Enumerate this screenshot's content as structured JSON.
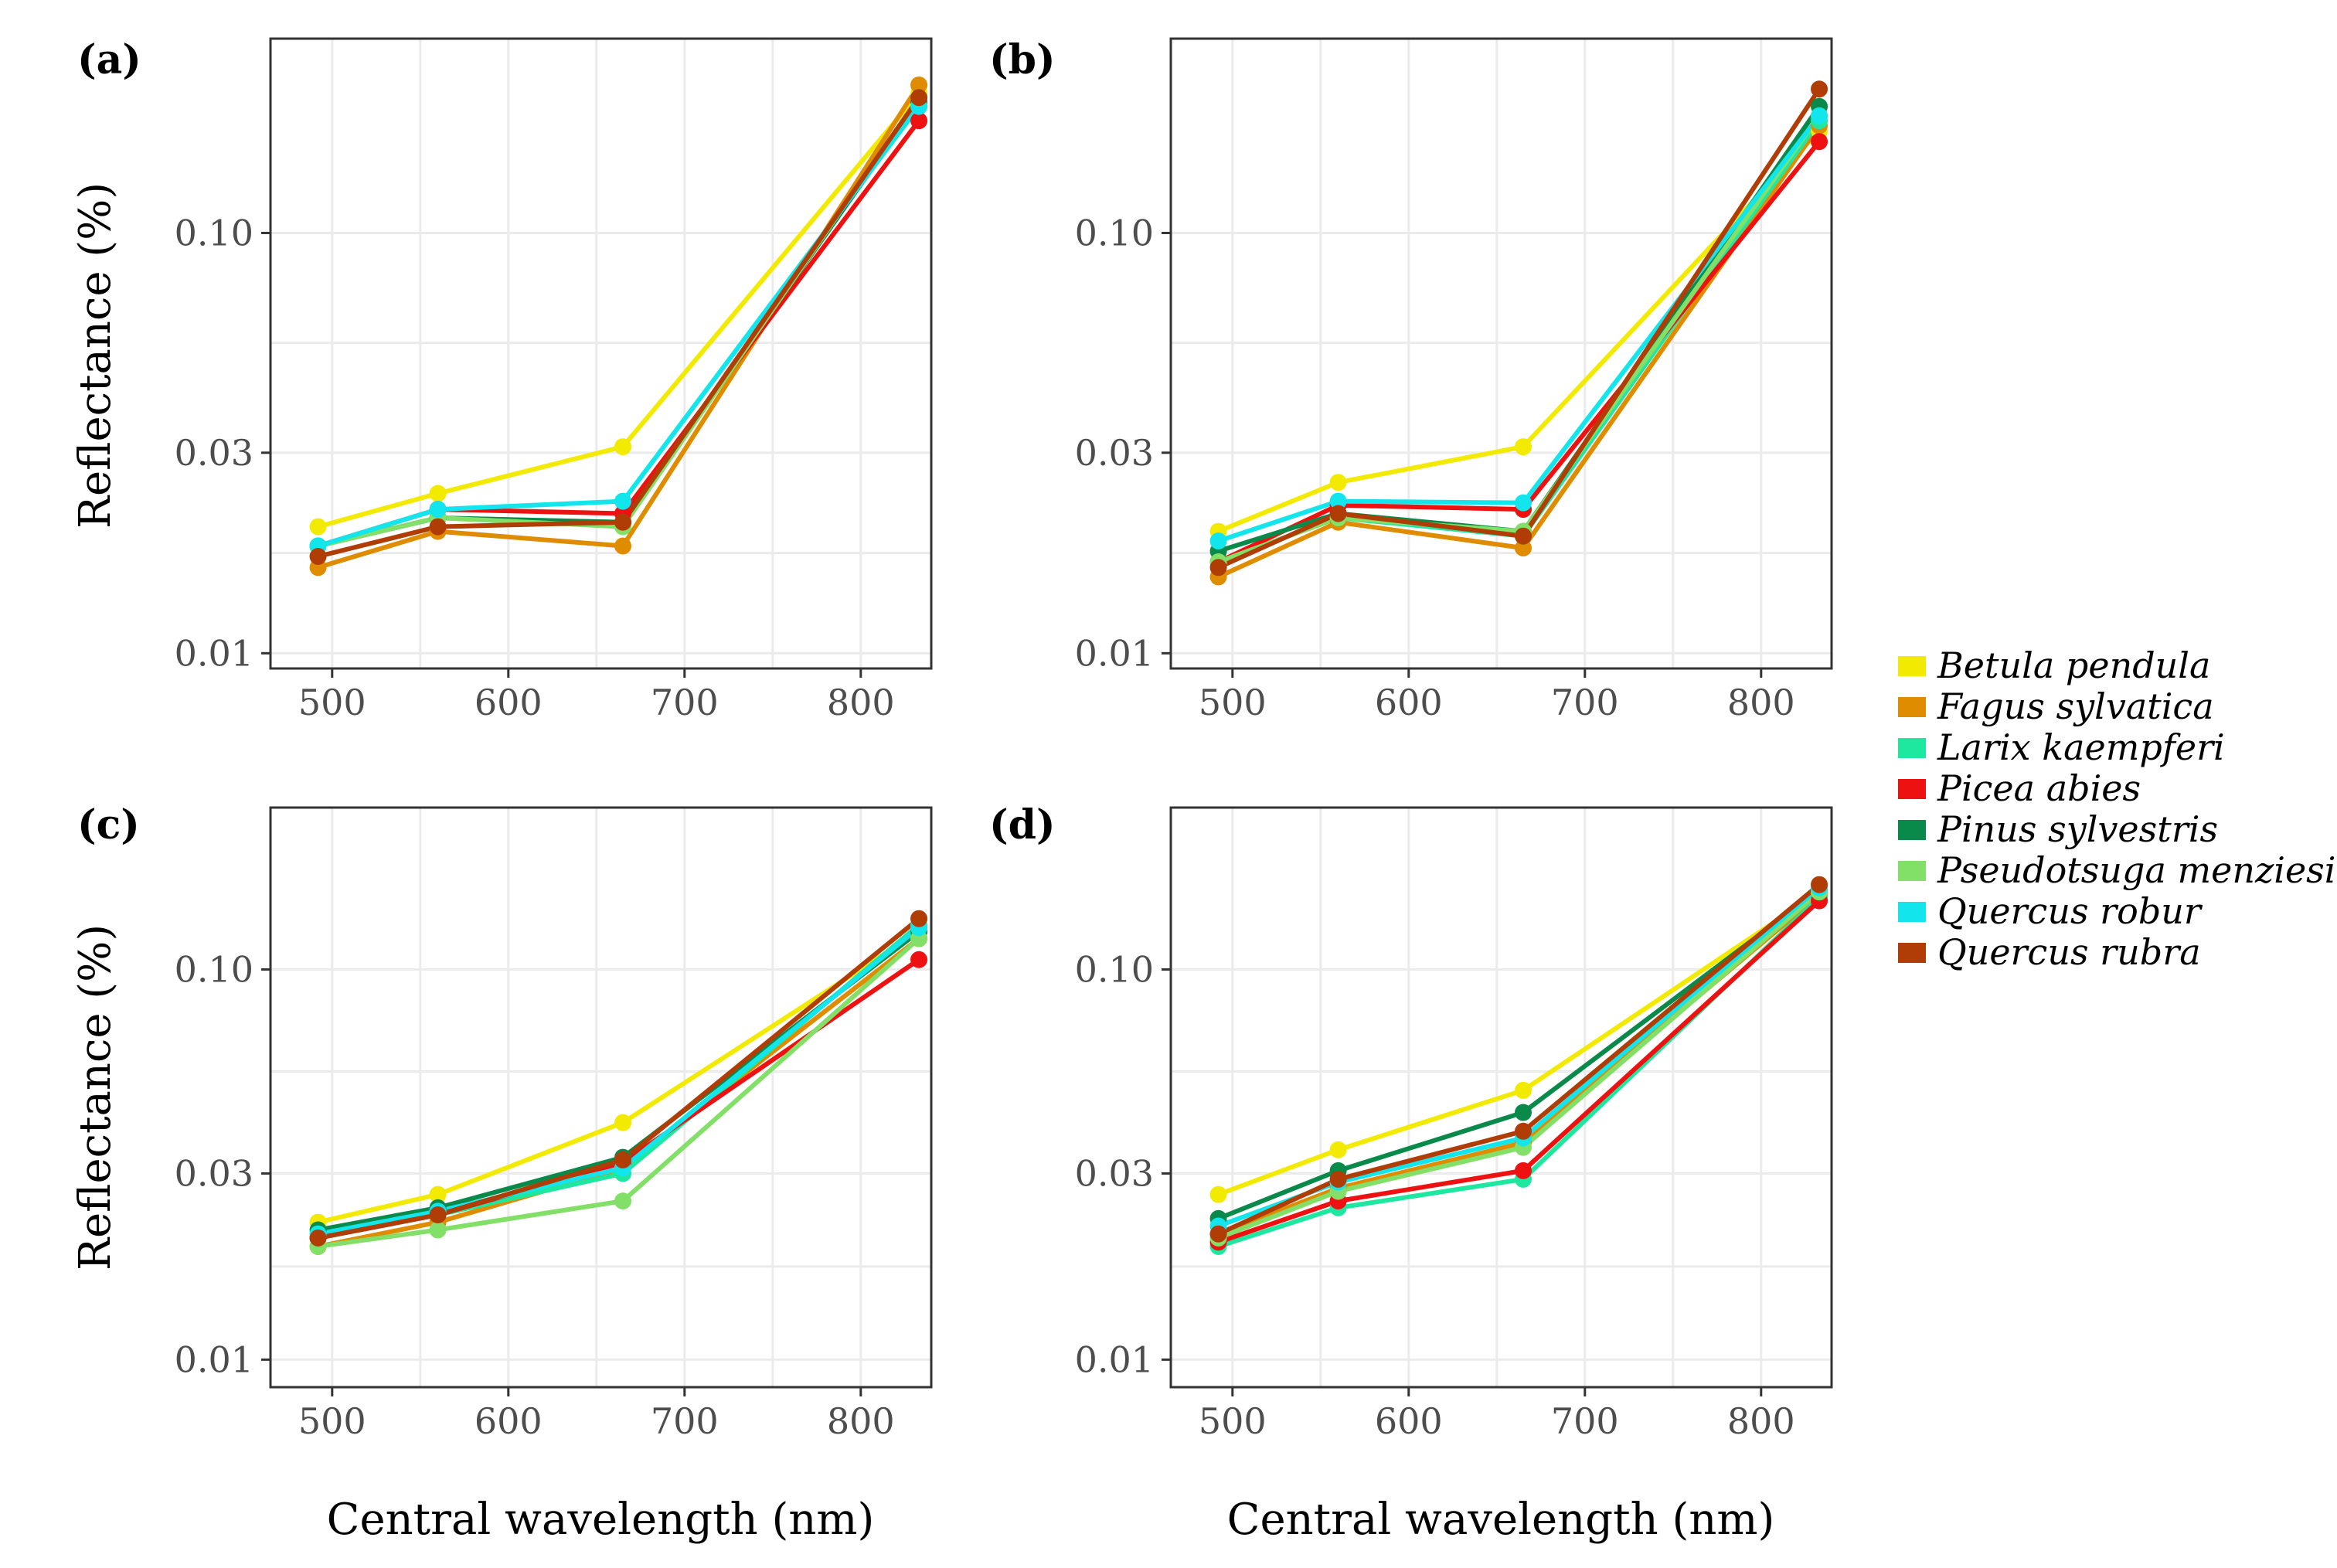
{
  "chart_data": {
    "type": "line",
    "x": [
      492,
      560,
      665,
      833
    ],
    "x_ticks": [
      "500",
      "600",
      "700",
      "800"
    ],
    "x_tick_values": [
      500,
      600,
      700,
      800
    ],
    "y_ticks": [
      "0.01",
      "0.03",
      "0.10"
    ],
    "y_tick_values": [
      0.01,
      0.03,
      0.1
    ],
    "y_scale": "log",
    "xlim": [
      465,
      840
    ],
    "ylim_a_b": [
      0.0092,
      0.29
    ],
    "ylim_c_d": [
      0.0085,
      0.26
    ],
    "xlabel": "Central wavelength (nm)",
    "ylabel": "Reflectance (%)",
    "legend_position": "right",
    "species": [
      {
        "name": "Betula pendula",
        "color": "#f2ea00"
      },
      {
        "name": "Fagus sylvatica",
        "color": "#e08c00"
      },
      {
        "name": "Larix kaempferi",
        "color": "#1ee8a0"
      },
      {
        "name": "Picea abies",
        "color": "#ee1111"
      },
      {
        "name": "Pinus sylvestris",
        "color": "#0a8a4a"
      },
      {
        "name": "Pseudotsuga menziesii",
        "color": "#82e068"
      },
      {
        "name": "Quercus robur",
        "color": "#12e6ec"
      },
      {
        "name": "Quercus rubra",
        "color": "#b03d06"
      }
    ],
    "panels": [
      {
        "label": "(a)",
        "ylim": [
          0.0092,
          0.29
        ],
        "series": [
          {
            "name": "Betula pendula",
            "values": [
              0.02,
              0.024,
              0.031,
              0.215
            ]
          },
          {
            "name": "Fagus sylvatica",
            "values": [
              0.016,
              0.0195,
              0.018,
              0.225
            ]
          },
          {
            "name": "Larix kaempferi",
            "values": [
              0.018,
              0.021,
              0.0205,
              0.205
            ]
          },
          {
            "name": "Picea abies",
            "values": [
              0.018,
              0.022,
              0.0215,
              0.185
            ]
          },
          {
            "name": "Pinus sylvestris",
            "values": [
              0.018,
              0.021,
              0.0205,
              0.205
            ]
          },
          {
            "name": "Pseudotsuga menziesii",
            "values": [
              0.018,
              0.021,
              0.02,
              0.21
            ]
          },
          {
            "name": "Quercus robur",
            "values": [
              0.018,
              0.022,
              0.023,
              0.2
            ]
          },
          {
            "name": "Quercus rubra",
            "values": [
              0.017,
              0.02,
              0.0205,
              0.21
            ]
          }
        ]
      },
      {
        "label": "(b)",
        "ylim": [
          0.0092,
          0.29
        ],
        "series": [
          {
            "name": "Betula pendula",
            "values": [
              0.0195,
              0.0255,
              0.031,
              0.175
            ]
          },
          {
            "name": "Fagus sylvatica",
            "values": [
              0.0152,
              0.0205,
              0.0178,
              0.18
            ]
          },
          {
            "name": "Larix kaempferi",
            "values": [
              0.0165,
              0.021,
              0.019,
              0.185
            ]
          },
          {
            "name": "Picea abies",
            "values": [
              0.0165,
              0.0225,
              0.022,
              0.165
            ]
          },
          {
            "name": "Pinus sylvestris",
            "values": [
              0.0175,
              0.0215,
              0.0195,
              0.2
            ]
          },
          {
            "name": "Pseudotsuga menziesii",
            "values": [
              0.0165,
              0.021,
              0.0195,
              0.19
            ]
          },
          {
            "name": "Quercus robur",
            "values": [
              0.0185,
              0.023,
              0.0228,
              0.19
            ]
          },
          {
            "name": "Quercus rubra",
            "values": [
              0.016,
              0.0215,
              0.019,
              0.22
            ]
          }
        ]
      },
      {
        "label": "(c)",
        "ylim": [
          0.0085,
          0.26
        ],
        "series": [
          {
            "name": "Betula pendula",
            "values": [
              0.0225,
              0.0265,
              0.0405,
              0.125
            ]
          },
          {
            "name": "Fagus sylvatica",
            "values": [
              0.0195,
              0.0225,
              0.031,
              0.12
            ]
          },
          {
            "name": "Larix kaempferi",
            "values": [
              0.0205,
              0.0235,
              0.03,
              0.13
            ]
          },
          {
            "name": "Picea abies",
            "values": [
              0.0205,
              0.0235,
              0.032,
              0.106
            ]
          },
          {
            "name": "Pinus sylvestris",
            "values": [
              0.0215,
              0.0245,
              0.033,
              0.125
            ]
          },
          {
            "name": "Pseudotsuga menziesii",
            "values": [
              0.0195,
              0.0215,
              0.0255,
              0.12
            ]
          },
          {
            "name": "Quercus robur",
            "values": [
              0.021,
              0.024,
              0.031,
              0.128
            ]
          },
          {
            "name": "Quercus rubra",
            "values": [
              0.0205,
              0.0235,
              0.0325,
              0.135
            ]
          }
        ]
      },
      {
        "label": "(d)",
        "ylim": [
          0.0085,
          0.26
        ],
        "series": [
          {
            "name": "Betula pendula",
            "values": [
              0.0265,
              0.0345,
              0.049,
              0.158
            ]
          },
          {
            "name": "Fagus sylvatica",
            "values": [
              0.021,
              0.0275,
              0.036,
              0.155
            ]
          },
          {
            "name": "Larix kaempferi",
            "values": [
              0.0195,
              0.0245,
              0.029,
              0.153
            ]
          },
          {
            "name": "Picea abies",
            "values": [
              0.02,
              0.0255,
              0.0305,
              0.15
            ]
          },
          {
            "name": "Pinus sylvestris",
            "values": [
              0.023,
              0.0305,
              0.043,
              0.16
            ]
          },
          {
            "name": "Pseudotsuga menziesii",
            "values": [
              0.0205,
              0.027,
              0.035,
              0.158
            ]
          },
          {
            "name": "Quercus robur",
            "values": [
              0.022,
              0.0285,
              0.037,
              0.162
            ]
          },
          {
            "name": "Quercus rubra",
            "values": [
              0.021,
              0.029,
              0.0385,
              0.165
            ]
          }
        ]
      }
    ]
  }
}
